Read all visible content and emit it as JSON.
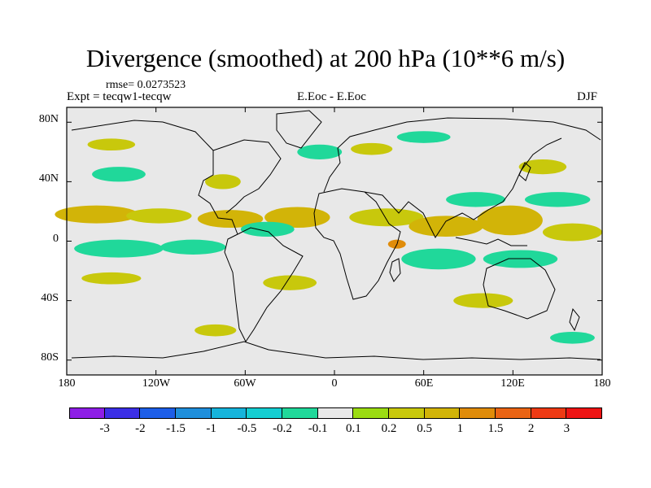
{
  "title": "Divergence (smoothed) at 200 hPa (10**6 m/s)",
  "rmse": "rmse= 0.0273523",
  "expt": "Expt = tecqw1-tecqw",
  "center_label": "E.Eoc - E.Eoc",
  "season": "DJF",
  "lat_ticks": [
    "80N",
    "40N",
    "0",
    "40S",
    "80S"
  ],
  "lon_ticks": [
    "180",
    "120W",
    "60W",
    "0",
    "60E",
    "120E",
    "180"
  ],
  "colorbar": {
    "colors": [
      "#8e1ee6",
      "#3c2fe6",
      "#1d5ee8",
      "#1f8fdc",
      "#16b4dc",
      "#14ced2",
      "#20d89a",
      "#e8e8e8",
      "#9bdc12",
      "#c8c80c",
      "#d2b408",
      "#e08c0a",
      "#ea6414",
      "#ee3a14",
      "#ee1414"
    ],
    "labels": [
      "-3",
      "-2",
      "-1.5",
      "-1",
      "-0.5",
      "-0.2",
      "-0.1",
      "0.1",
      "0.2",
      "0.5",
      "1",
      "1.5",
      "2",
      "3"
    ]
  },
  "chart_data": {
    "type": "heatmap",
    "title": "Divergence (smoothed) at 200 hPa (10**6 m/s)",
    "subtitle_left": "Expt = tecqw1-tecqw",
    "subtitle_center": "E.Eoc - E.Eoc",
    "subtitle_right": "DJF",
    "annotation": "rmse= 0.0273523",
    "xlim": [
      -180,
      180
    ],
    "ylim": [
      -90,
      90
    ],
    "x_ticks": [
      -180,
      -120,
      -60,
      0,
      60,
      120,
      180
    ],
    "x_tick_labels": [
      "180",
      "120W",
      "60W",
      "0",
      "60E",
      "120E",
      "180"
    ],
    "y_ticks": [
      80,
      40,
      0,
      -40,
      -80
    ],
    "y_tick_labels": [
      "80N",
      "40N",
      "0",
      "40S",
      "80S"
    ],
    "contour_levels": [
      -3,
      -2,
      -1.5,
      -1,
      -0.5,
      -0.2,
      -0.1,
      0.1,
      0.2,
      0.5,
      1,
      1.5,
      2,
      3
    ],
    "regions": [
      {
        "lon": -160,
        "lat": 18,
        "value": 0.5,
        "rlon": 28,
        "rlat": 6
      },
      {
        "lon": -118,
        "lat": 17,
        "value": 0.2,
        "rlon": 22,
        "rlat": 5
      },
      {
        "lon": -70,
        "lat": 15,
        "value": 0.5,
        "rlon": 22,
        "rlat": 6
      },
      {
        "lon": -25,
        "lat": 16,
        "value": 0.5,
        "rlon": 22,
        "rlat": 7
      },
      {
        "lon": 35,
        "lat": 16,
        "value": 0.2,
        "rlon": 25,
        "rlat": 6
      },
      {
        "lon": 75,
        "lat": 10,
        "value": 0.5,
        "rlon": 25,
        "rlat": 7
      },
      {
        "lon": 118,
        "lat": 14,
        "value": 0.5,
        "rlon": 22,
        "rlat": 10
      },
      {
        "lon": 160,
        "lat": 6,
        "value": 0.2,
        "rlon": 20,
        "rlat": 6
      },
      {
        "lon": 42,
        "lat": -2,
        "value": 1,
        "rlon": 6,
        "rlat": 3
      },
      {
        "lon": -145,
        "lat": -5,
        "value": -0.2,
        "rlon": 30,
        "rlat": 6
      },
      {
        "lon": -95,
        "lat": -4,
        "value": -0.2,
        "rlon": 22,
        "rlat": 5
      },
      {
        "lon": -45,
        "lat": 8,
        "value": -0.2,
        "rlon": 18,
        "rlat": 5
      },
      {
        "lon": 70,
        "lat": -12,
        "value": -0.2,
        "rlon": 25,
        "rlat": 7
      },
      {
        "lon": 125,
        "lat": -12,
        "value": -0.2,
        "rlon": 25,
        "rlat": 6
      },
      {
        "lon": 95,
        "lat": 28,
        "value": -0.2,
        "rlon": 20,
        "rlat": 5
      },
      {
        "lon": 150,
        "lat": 28,
        "value": -0.2,
        "rlon": 22,
        "rlat": 5
      },
      {
        "lon": -145,
        "lat": 45,
        "value": -0.2,
        "rlon": 18,
        "rlat": 5
      },
      {
        "lon": -10,
        "lat": 60,
        "value": -0.2,
        "rlon": 15,
        "rlat": 5
      },
      {
        "lon": 60,
        "lat": 70,
        "value": -0.2,
        "rlon": 18,
        "rlat": 4
      },
      {
        "lon": -150,
        "lat": 65,
        "value": 0.2,
        "rlon": 16,
        "rlat": 4
      },
      {
        "lon": -75,
        "lat": 40,
        "value": 0.2,
        "rlon": 12,
        "rlat": 5
      },
      {
        "lon": 25,
        "lat": 62,
        "value": 0.2,
        "rlon": 14,
        "rlat": 4
      },
      {
        "lon": 140,
        "lat": 50,
        "value": 0.2,
        "rlon": 16,
        "rlat": 5
      },
      {
        "lon": -150,
        "lat": -25,
        "value": 0.2,
        "rlon": 20,
        "rlat": 4
      },
      {
        "lon": -30,
        "lat": -28,
        "value": 0.2,
        "rlon": 18,
        "rlat": 5
      },
      {
        "lon": 100,
        "lat": -40,
        "value": 0.2,
        "rlon": 20,
        "rlat": 5
      },
      {
        "lon": -80,
        "lat": -60,
        "value": 0.2,
        "rlon": 14,
        "rlat": 4
      },
      {
        "lon": 160,
        "lat": -65,
        "value": -0.2,
        "rlon": 15,
        "rlat": 4
      }
    ]
  }
}
